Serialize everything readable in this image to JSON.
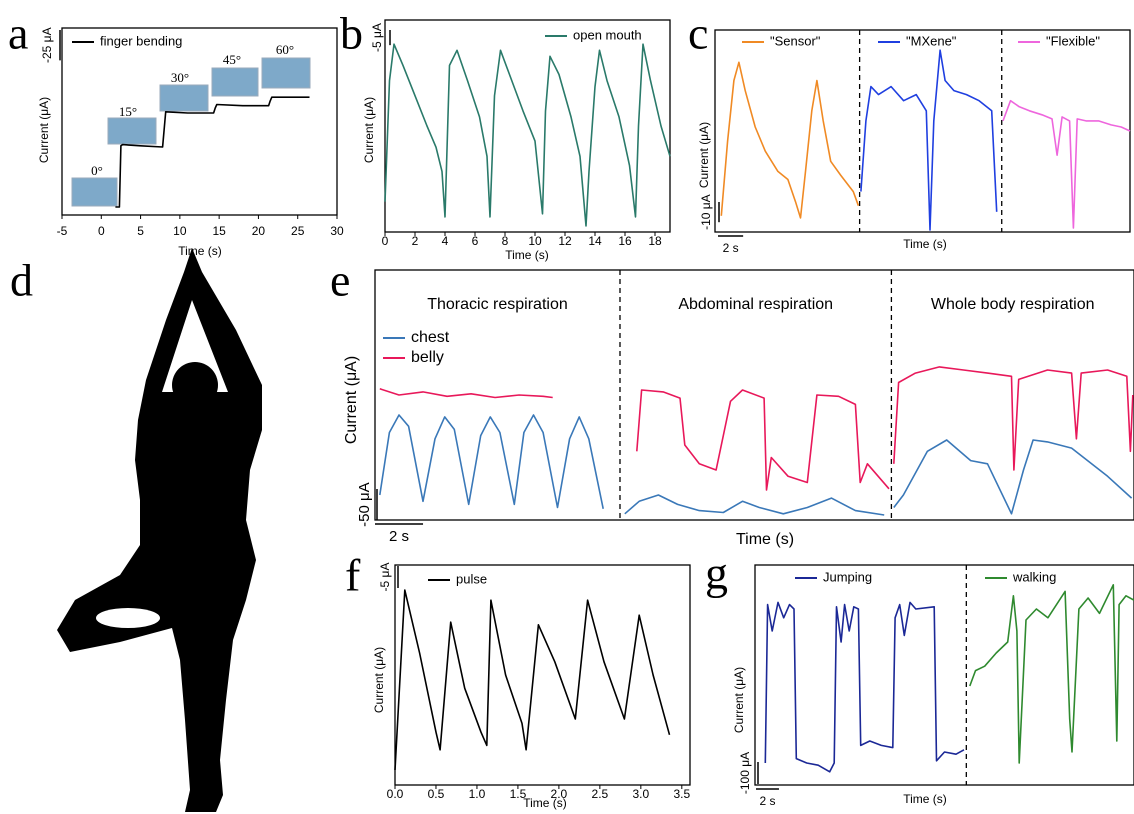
{
  "chart_data": [
    {
      "type": "line",
      "panel": "a",
      "xlabel": "Time (s)",
      "ylabel": "Current (μA)",
      "xlim": [
        -5,
        30
      ],
      "xticks": [
        -5,
        0,
        5,
        10,
        15,
        20,
        25,
        30
      ],
      "ylim": [
        0,
        154
      ],
      "scale_bars": [
        {
          "label": "-25 μA",
          "value": -25,
          "axis": "y"
        }
      ],
      "annotations": [
        "0°",
        "15°",
        "30°",
        "45°",
        "60°"
      ],
      "series": [
        {
          "name": "finger bending",
          "color": "#000000",
          "x": [
            1.8,
            2.3,
            2.5,
            2.7,
            5,
            7.8,
            8.0,
            8.2,
            11,
            14.3,
            14.5,
            14.7,
            18,
            21.3,
            21.5,
            21.7,
            24,
            26.5
          ],
          "values": [
            6.6,
            6.6,
            57,
            58,
            57,
            56,
            70,
            85,
            84,
            84,
            88,
            91,
            90,
            90,
            94,
            97,
            97,
            97
          ]
        }
      ]
    },
    {
      "type": "line",
      "panel": "b",
      "xlabel": "Time (s)",
      "ylabel": "Current (μA)",
      "xlim": [
        0,
        19
      ],
      "xticks": [
        0,
        2,
        4,
        6,
        8,
        10,
        12,
        14,
        16,
        18
      ],
      "ylim": [
        0,
        70
      ],
      "scale_bars": [
        {
          "label": "-5 μA",
          "value": -5,
          "axis": "y"
        }
      ],
      "series": [
        {
          "name": "open mouth",
          "color": "#2a7a6a",
          "x": [
            0,
            0.3,
            0.6,
            1.2,
            2,
            2.8,
            3.4,
            3.8,
            4.0,
            4.3,
            4.8,
            5.5,
            6.3,
            6.8,
            7.0,
            7.3,
            7.7,
            8.3,
            9.2,
            10,
            10.5,
            10.7,
            11.0,
            11.6,
            12.4,
            13.0,
            13.4,
            13.6,
            14.0,
            14.3,
            14.8,
            15.6,
            16.3,
            16.7,
            16.9,
            17.2,
            17.7,
            18.4,
            19
          ],
          "values": [
            10,
            50,
            62,
            55,
            45,
            35,
            28,
            20,
            5,
            55,
            60,
            50,
            38,
            25,
            5,
            45,
            60,
            52,
            40,
            30,
            6,
            40,
            58,
            52,
            38,
            25,
            2,
            20,
            48,
            60,
            50,
            38,
            22,
            5,
            35,
            62,
            50,
            35,
            25
          ]
        }
      ]
    },
    {
      "type": "line",
      "panel": "c",
      "xlabel": "Time (s)",
      "ylabel": "Current (μA)",
      "xlim": [
        0,
        33
      ],
      "ylim": [
        0,
        100
      ],
      "dividers": [
        11.5,
        22.8
      ],
      "scale_bars": [
        {
          "label": "-10 μA",
          "value": -10,
          "axis": "y"
        },
        {
          "label": "2 s",
          "value": 2,
          "axis": "x"
        }
      ],
      "series": [
        {
          "name": "\"Sensor\"",
          "color": "#f08a24",
          "x": [
            0.5,
            1.0,
            1.5,
            1.9,
            2.4,
            3.2,
            4.0,
            5.0,
            5.8,
            6.4,
            6.8,
            7.2,
            7.7,
            8.1,
            8.6,
            9.2,
            10,
            11,
            11.4
          ],
          "values": [
            8,
            45,
            75,
            84,
            70,
            52,
            40,
            30,
            26,
            15,
            7,
            30,
            60,
            75,
            55,
            35,
            28,
            20,
            13
          ]
        },
        {
          "name": "\"MXene\"",
          "color": "#1f3fe0",
          "x": [
            11.6,
            12.0,
            12.4,
            13.0,
            14.0,
            15.0,
            16.0,
            16.8,
            17.1,
            17.4,
            17.9,
            18.3,
            19.0,
            20.0,
            21.0,
            22.0,
            22.4
          ],
          "values": [
            20,
            55,
            72,
            68,
            72,
            65,
            68,
            60,
            1,
            55,
            90,
            75,
            70,
            68,
            65,
            60,
            10
          ]
        },
        {
          "name": "\"Flexible\"",
          "color": "#ee66dd",
          "x": [
            22.9,
            23.5,
            24.2,
            25,
            26,
            26.8,
            27.2,
            27.6,
            28.2,
            28.5,
            28.8,
            29.5,
            30.5,
            31.5,
            32.3,
            33
          ],
          "values": [
            55,
            65,
            62,
            60,
            58,
            56,
            38,
            57,
            55,
            2,
            56,
            55,
            55,
            53,
            52,
            50
          ]
        }
      ]
    },
    {
      "type": "image",
      "panel": "d"
    },
    {
      "type": "line",
      "panel": "e",
      "xlabel": "Time (s)",
      "ylabel": "Current (μA)",
      "xlim": [
        0,
        31.6
      ],
      "ylim": [
        0,
        400
      ],
      "dividers": [
        10.2,
        21.5
      ],
      "sections": [
        "Thoracic respiration",
        "Abdominal respiration",
        "Whole body respiration"
      ],
      "scale_bars": [
        {
          "label": "-50 μA",
          "value": -50,
          "axis": "y"
        },
        {
          "label": "2 s",
          "value": 2,
          "axis": "x"
        }
      ],
      "series": [
        {
          "name": "chest",
          "color": "#3a78b8",
          "x": [
            0.2,
            0.6,
            1.0,
            1.4,
            2.0,
            2.5,
            2.9,
            3.3,
            3.9,
            4.4,
            4.8,
            5.2,
            5.8,
            6.2,
            6.6,
            7.0,
            7.6,
            8.1,
            8.5,
            8.9,
            9.5,
            null,
            10.4,
            11,
            11.8,
            12.6,
            13.5,
            14.5,
            15.3,
            16,
            17,
            18,
            19,
            20,
            21.2,
            null,
            21.6,
            22,
            23,
            23.8,
            24.8,
            25.5,
            26.5,
            27,
            27.4,
            28,
            29,
            29.5,
            30.5,
            31.5
          ],
          "values": [
            40,
            140,
            168,
            150,
            30,
            130,
            165,
            145,
            25,
            135,
            165,
            140,
            25,
            140,
            168,
            140,
            20,
            130,
            165,
            130,
            18,
            null,
            10,
            30,
            40,
            25,
            15,
            12,
            30,
            20,
            10,
            20,
            35,
            15,
            8,
            null,
            20,
            40,
            110,
            128,
            95,
            90,
            10,
            80,
            128,
            125,
            115,
            100,
            70,
            35
          ]
        },
        {
          "name": "belly",
          "color": "#e8185a",
          "x": [
            0.2,
            1,
            2,
            3,
            4,
            5,
            6,
            7,
            7.4,
            null,
            10.9,
            11.1,
            12.0,
            12.7,
            12.9,
            13.5,
            14.2,
            14.8,
            15.3,
            16.2,
            16.3,
            16.5,
            17.2,
            18.0,
            18.4,
            19.3,
            20.0,
            20.2,
            20.5,
            21.4,
            null,
            21.6,
            21.8,
            22.5,
            23.5,
            24.5,
            25.5,
            26.5,
            26.6,
            26.8,
            28,
            29,
            29.2,
            29.4,
            30.5,
            31.3,
            31.45,
            31.55
          ],
          "values": [
            210,
            200,
            205,
            198,
            202,
            196,
            200,
            198,
            196,
            null,
            110,
            208,
            205,
            195,
            120,
            90,
            80,
            190,
            208,
            195,
            48,
            100,
            70,
            60,
            200,
            198,
            185,
            60,
            90,
            50,
            null,
            90,
            220,
            235,
            245,
            240,
            235,
            230,
            80,
            225,
            240,
            235,
            130,
            235,
            240,
            230,
            110,
            200
          ]
        }
      ]
    },
    {
      "type": "line",
      "panel": "f",
      "xlabel": "Time (s)",
      "ylabel": "Current (μA)",
      "xlim": [
        0,
        3.6
      ],
      "ylim": [
        0,
        50
      ],
      "xticks": [
        {
          "value": 0,
          "label": "0.0"
        },
        0.5,
        {
          "value": 1,
          "label": "1.0"
        },
        1.5,
        {
          "value": 2,
          "label": "2.0"
        },
        2.5,
        {
          "value": 3,
          "label": "3.0"
        },
        3.5
      ],
      "scale_bars": [
        {
          "label": "-5 μA",
          "value": -5,
          "axis": "y"
        }
      ],
      "series": [
        {
          "name": "pulse",
          "color": "#000000",
          "x": [
            0.0,
            0.12,
            0.3,
            0.5,
            0.55,
            0.68,
            0.85,
            1.05,
            1.12,
            1.17,
            1.35,
            1.55,
            1.6,
            1.75,
            1.95,
            2.2,
            2.35,
            2.55,
            2.8,
            2.98,
            3.15,
            3.35
          ],
          "values": [
            3.4,
            44.3,
            30,
            12,
            8,
            37,
            22,
            12,
            9,
            42,
            25,
            14,
            8,
            36.4,
            28,
            15,
            42,
            28,
            15,
            38.6,
            25,
            11.4
          ]
        }
      ]
    },
    {
      "type": "line",
      "panel": "g",
      "xlabel": "Time (s)",
      "ylabel": "Current (μA)",
      "xlim": [
        0,
        33
      ],
      "ylim": [
        0,
        1000
      ],
      "dividers": [
        18.4
      ],
      "scale_bars": [
        {
          "label": "-100 μA",
          "value": -100,
          "axis": "y"
        },
        {
          "label": "2 s",
          "value": 2,
          "axis": "x"
        }
      ],
      "series": [
        {
          "name": "Jumping",
          "color": "#1b2896",
          "x": [
            0.9,
            1.1,
            1.5,
            2.0,
            2.5,
            3.0,
            3.4,
            3.6,
            4.5,
            5.5,
            6.5,
            6.9,
            7.1,
            7.5,
            7.8,
            8.2,
            8.6,
            9.0,
            9.2,
            10,
            11,
            12.0,
            12.2,
            12.6,
            13,
            13.5,
            14,
            15.6,
            15.8,
            16.5,
            17.5,
            18.2
          ],
          "values": [
            100,
            820,
            700,
            830,
            760,
            820,
            800,
            120,
            100,
            90,
            60,
            100,
            810,
            650,
            820,
            700,
            810,
            800,
            180,
            200,
            180,
            170,
            760,
            820,
            680,
            830,
            800,
            810,
            110,
            150,
            140,
            160
          ]
        },
        {
          "name": "walking",
          "color": "#2f8a2f",
          "x": [
            18.7,
            19.2,
            20,
            21,
            22,
            22.5,
            22.8,
            23,
            23.6,
            24.5,
            25.5,
            27,
            27.4,
            27.6,
            28.2,
            29,
            30,
            31.2,
            31.5,
            31.7,
            32.3,
            33
          ],
          "values": [
            450,
            520,
            540,
            600,
            650,
            860,
            700,
            100,
            750,
            800,
            760,
            880,
            300,
            150,
            800,
            850,
            780,
            910,
            200,
            820,
            860,
            840
          ]
        }
      ]
    }
  ]
}
